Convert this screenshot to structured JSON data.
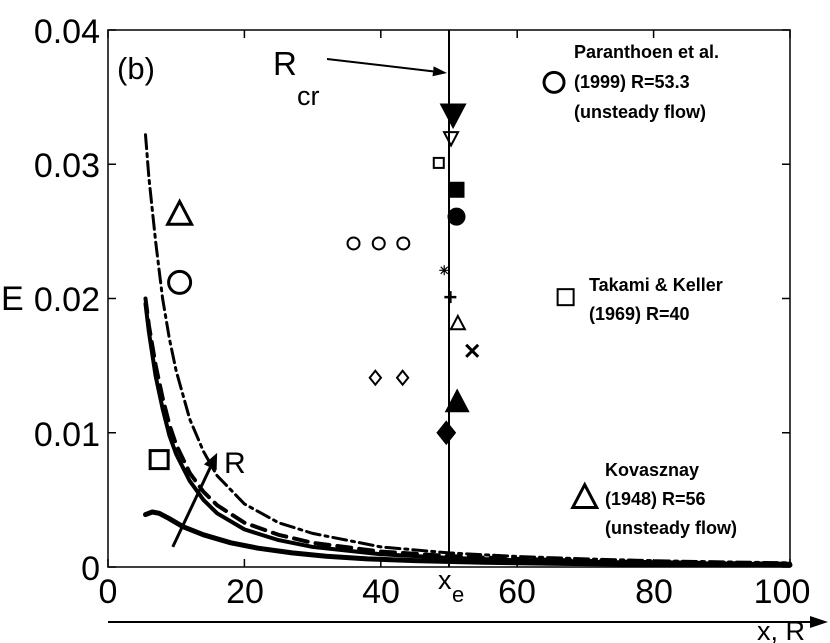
{
  "chart_data": {
    "type": "line",
    "panel_label": "(b)",
    "ylabel": "E",
    "xlabel": "x, R",
    "xlim": [
      0,
      100
    ],
    "ylim": [
      0,
      0.04
    ],
    "x_ticks": [
      0,
      20,
      40,
      60,
      80,
      100
    ],
    "x_tick_labels": [
      "0",
      "20",
      "40",
      "60",
      "80",
      "100"
    ],
    "y_ticks": [
      0,
      0.01,
      0.02,
      0.03,
      0.04
    ],
    "y_tick_labels": [
      "0",
      "0.01",
      "0.02",
      "0.03",
      "0.04"
    ],
    "vertical_line": {
      "x": 50,
      "label_main": "x",
      "label_sub": "e"
    },
    "rcr_annotation": {
      "text_main": "R",
      "text_sub": "cr",
      "target": [
        50,
        0.0368
      ]
    },
    "r_arrow": {
      "label": "R",
      "from": [
        9.5,
        0.0015
      ],
      "to": [
        16,
        0.0085
      ]
    },
    "series": [
      {
        "name": "solid-curve",
        "style": "solid",
        "width": 5,
        "points": [
          [
            5.5,
            0.0039
          ],
          [
            6.5,
            0.0041
          ],
          [
            7.5,
            0.004
          ],
          [
            9,
            0.0036
          ],
          [
            11,
            0.003
          ],
          [
            14,
            0.0024
          ],
          [
            18,
            0.0018
          ],
          [
            22,
            0.0014
          ],
          [
            27,
            0.00105
          ],
          [
            32,
            0.0008
          ],
          [
            38,
            0.0006
          ],
          [
            45,
            0.00048
          ],
          [
            55,
            0.00036
          ],
          [
            65,
            0.00028
          ],
          [
            75,
            0.00022
          ],
          [
            85,
            0.00018
          ],
          [
            100,
            0.00014
          ]
        ]
      },
      {
        "name": "solid-curve-2",
        "style": "solid",
        "width": 4,
        "points": [
          [
            5.5,
            0.0196
          ],
          [
            6,
            0.0175
          ],
          [
            7,
            0.0142
          ],
          [
            8,
            0.0118
          ],
          [
            9,
            0.0098
          ],
          [
            10,
            0.0084
          ],
          [
            12,
            0.0064
          ],
          [
            14,
            0.005
          ],
          [
            16,
            0.004
          ],
          [
            20,
            0.0028
          ],
          [
            25,
            0.002
          ],
          [
            30,
            0.0015
          ],
          [
            40,
            0.00095
          ],
          [
            50,
            0.00068
          ],
          [
            60,
            0.0005
          ],
          [
            70,
            0.00039
          ],
          [
            80,
            0.00031
          ],
          [
            90,
            0.00025
          ],
          [
            100,
            0.0002
          ]
        ]
      },
      {
        "name": "dashed-curve",
        "style": "dashed",
        "width": 4,
        "points": [
          [
            5.5,
            0.02
          ],
          [
            6,
            0.018
          ],
          [
            7,
            0.015
          ],
          [
            8,
            0.0126
          ],
          [
            9,
            0.0106
          ],
          [
            10,
            0.0091
          ],
          [
            12,
            0.007
          ],
          [
            14,
            0.0056
          ],
          [
            16,
            0.0046
          ],
          [
            20,
            0.0033
          ],
          [
            25,
            0.0024
          ],
          [
            30,
            0.0018
          ],
          [
            40,
            0.00115
          ],
          [
            50,
            0.00082
          ],
          [
            60,
            0.0006
          ],
          [
            70,
            0.00046
          ],
          [
            80,
            0.00036
          ],
          [
            90,
            0.00029
          ],
          [
            100,
            0.00024
          ]
        ]
      },
      {
        "name": "dash-dot-curve",
        "style": "dashdot",
        "width": 3,
        "points": [
          [
            5.5,
            0.0322
          ],
          [
            6,
            0.029
          ],
          [
            7,
            0.0242
          ],
          [
            8,
            0.02
          ],
          [
            9,
            0.017
          ],
          [
            10,
            0.0146
          ],
          [
            12,
            0.011
          ],
          [
            14,
            0.0086
          ],
          [
            16,
            0.0068
          ],
          [
            20,
            0.0047
          ],
          [
            25,
            0.0033
          ],
          [
            30,
            0.0025
          ],
          [
            40,
            0.0015
          ],
          [
            50,
            0.00105
          ],
          [
            60,
            0.00078
          ],
          [
            70,
            0.0006
          ],
          [
            80,
            0.00047
          ],
          [
            90,
            0.00038
          ],
          [
            100,
            0.00031
          ]
        ]
      }
    ],
    "markers": [
      {
        "shape": "circle",
        "x": 10.5,
        "y": 0.0212,
        "size": 11,
        "fill": "open"
      },
      {
        "shape": "triangle",
        "x": 10.5,
        "y": 0.0262,
        "size": 12,
        "fill": "open"
      },
      {
        "shape": "square",
        "x": 7.5,
        "y": 0.008,
        "size": 9,
        "fill": "open"
      },
      {
        "shape": "circle",
        "x": 36,
        "y": 0.0241,
        "size": 6,
        "fill": "open"
      },
      {
        "shape": "circle",
        "x": 39.7,
        "y": 0.0241,
        "size": 6,
        "fill": "open"
      },
      {
        "shape": "circle",
        "x": 43.3,
        "y": 0.0241,
        "size": 6,
        "fill": "open"
      },
      {
        "shape": "diamond",
        "x": 39.2,
        "y": 0.0141,
        "size": 7,
        "fill": "open"
      },
      {
        "shape": "diamond",
        "x": 43.2,
        "y": 0.0141,
        "size": 7,
        "fill": "open"
      },
      {
        "shape": "triangle-down",
        "x": 50.6,
        "y": 0.0338,
        "size": 11,
        "fill": "filled"
      },
      {
        "shape": "triangle-down",
        "x": 50.3,
        "y": 0.032,
        "size": 7,
        "fill": "open"
      },
      {
        "shape": "square",
        "x": 48.5,
        "y": 0.0301,
        "size": 5,
        "fill": "open"
      },
      {
        "shape": "square",
        "x": 51.1,
        "y": 0.0281,
        "size": 7,
        "fill": "filled"
      },
      {
        "shape": "circle",
        "x": 51.1,
        "y": 0.0261,
        "size": 8,
        "fill": "filled"
      },
      {
        "shape": "asterisk",
        "x": 49.3,
        "y": 0.0221,
        "size": 5,
        "fill": "line"
      },
      {
        "shape": "plus",
        "x": 50.2,
        "y": 0.0201,
        "size": 6,
        "fill": "line"
      },
      {
        "shape": "triangle",
        "x": 51.3,
        "y": 0.0181,
        "size": 7,
        "fill": "open"
      },
      {
        "shape": "cross",
        "x": 53.4,
        "y": 0.0161,
        "size": 6,
        "fill": "line"
      },
      {
        "shape": "triangle",
        "x": 51.2,
        "y": 0.0122,
        "size": 10,
        "fill": "filled"
      },
      {
        "shape": "diamond",
        "x": 49.6,
        "y": 0.01,
        "size": 10,
        "fill": "filled"
      },
      {
        "shape": "circle",
        "x": 65.4,
        "y": 0.0361,
        "size": 10,
        "fill": "open"
      },
      {
        "shape": "square",
        "x": 67.1,
        "y": 0.0201,
        "size": 8,
        "fill": "open"
      },
      {
        "shape": "triangle",
        "x": 69.9,
        "y": 0.0051,
        "size": 12,
        "fill": "open"
      }
    ],
    "legend": [
      {
        "lines": [
          "Paranthoen et al.",
          "(1999) R=53.3",
          "(unsteady flow)"
        ]
      },
      {
        "lines": [
          "Takami & Keller",
          "(1969) R=40"
        ]
      },
      {
        "lines": [
          "Kovasznay",
          "(1948) R=56",
          "(unsteady flow)"
        ]
      }
    ]
  }
}
